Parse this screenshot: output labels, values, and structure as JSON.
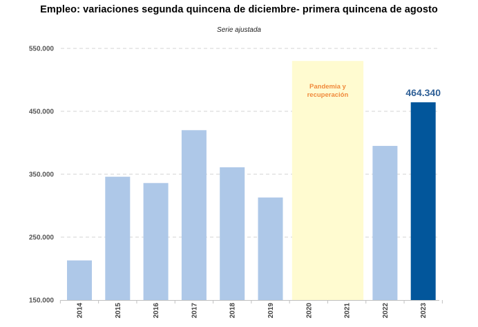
{
  "chart_data": {
    "type": "bar",
    "title": "Empleo: variaciones segunda quincena de diciembre- primera quincena de agosto",
    "subtitle": "Serie ajustada",
    "categories": [
      "2014",
      "2015",
      "2016",
      "2017",
      "2018",
      "2019",
      "2020",
      "2021",
      "2022",
      "2023"
    ],
    "values": [
      213000,
      346000,
      336000,
      420000,
      361000,
      313000,
      null,
      null,
      395000,
      464340
    ],
    "ylim": [
      150000,
      550000
    ],
    "yticks": [
      150000,
      250000,
      350000,
      450000,
      550000
    ],
    "ytick_labels": [
      "150.000",
      "250.000",
      "350.000",
      "450.000",
      "550.000"
    ],
    "grid": true,
    "colors": {
      "bar": "#AEC8E8",
      "highlight": "#02569B",
      "band": "#FFFBD0",
      "band_text": "#F08A3C",
      "grid": "#D3D3D3",
      "label": "#2E5F96"
    },
    "highlight_index": 9,
    "data_labels": [
      {
        "index": 9,
        "text": "464.340"
      }
    ],
    "band": {
      "from": "2020",
      "to": "2021",
      "top": 530000,
      "label_lines": [
        "Pandemia y",
        "recuperación"
      ]
    }
  }
}
